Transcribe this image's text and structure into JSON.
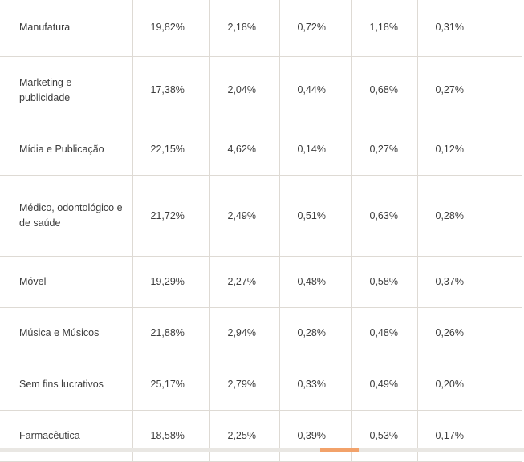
{
  "table": {
    "rows": [
      {
        "label": "Manufatura",
        "values": [
          "19,82%",
          "2,18%",
          "0,72%",
          "1,18%",
          "0,31%"
        ]
      },
      {
        "label": "Marketing e publicidade",
        "values": [
          "17,38%",
          "2,04%",
          "0,44%",
          "0,68%",
          "0,27%"
        ]
      },
      {
        "label": "Mídia e Publicação",
        "values": [
          "22,15%",
          "4,62%",
          "0,14%",
          "0,27%",
          "0,12%"
        ]
      },
      {
        "label": "Médico, odontológico e de saúde",
        "values": [
          "21,72%",
          "2,49%",
          "0,51%",
          "0,63%",
          "0,28%"
        ]
      },
      {
        "label": "Móvel",
        "values": [
          "19,29%",
          "2,27%",
          "0,48%",
          "0,58%",
          "0,37%"
        ]
      },
      {
        "label": "Música e Músicos",
        "values": [
          "21,88%",
          "2,94%",
          "0,28%",
          "0,48%",
          "0,26%"
        ]
      },
      {
        "label": "Sem fins lucrativos",
        "values": [
          "25,17%",
          "2,79%",
          "0,33%",
          "0,49%",
          "0,20%"
        ]
      },
      {
        "label": "Farmacêutica",
        "values": [
          "18,58%",
          "2,25%",
          "0,39%",
          "0,53%",
          "0,17%"
        ]
      }
    ]
  },
  "colors": {
    "border": "#dedad4",
    "text": "#3d3d3d",
    "scroll_thumb": "#f2a26a",
    "scroll_track": "#e9e7e3"
  }
}
